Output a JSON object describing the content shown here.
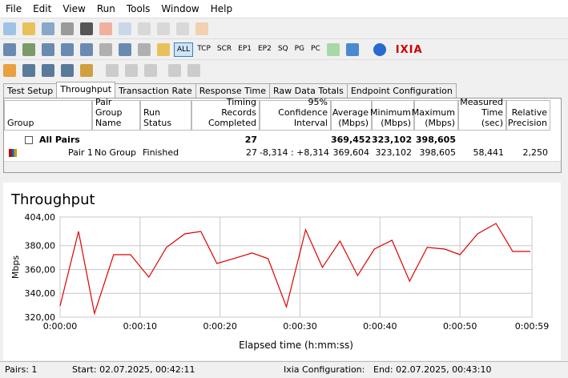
{
  "menu": [
    "File",
    "Edit",
    "View",
    "Run",
    "Tools",
    "Window",
    "Help"
  ],
  "toolbar": {
    "filters": [
      "ALL",
      "TCP",
      "SCR",
      "EP1",
      "EP2",
      "SQ",
      "PG",
      "PC"
    ],
    "logo": "IXIA"
  },
  "tabs": [
    "Test Setup",
    "Throughput",
    "Transaction Rate",
    "Response Time",
    "Raw Data Totals",
    "Endpoint Configuration"
  ],
  "table": {
    "headers": [
      "Group",
      "Pair Group Name",
      "Run Status",
      "Timing Records Completed",
      "95% Confidence Interval",
      "Average (Mbps)",
      "Minimum (Mbps)",
      "Maximum (Mbps)",
      "Measured Time (sec)",
      "Relative Precision"
    ],
    "rows": [
      [
        "All Pairs",
        null,
        null,
        "27",
        null,
        "369,452",
        "323,102",
        "398,605",
        null,
        null
      ],
      [
        "Pair 1",
        "No Group",
        "Finished",
        "27",
        "-8,314 : +8,314",
        "369,604",
        "323,102",
        "398,605",
        "58,441",
        "2,250"
      ]
    ]
  },
  "chart_data": {
    "type": "line",
    "title": "Throughput",
    "x_label": "Elapsed time (h:mm:ss)",
    "y_label": "Mbps",
    "color": "#e00000",
    "grid": true,
    "x": [
      0,
      2.3,
      4.3,
      6.7,
      8.8,
      11.1,
      13.3,
      15.6,
      17.6,
      19.6,
      21.7,
      24.0,
      26.0,
      28.3,
      30.7,
      32.8,
      35.0,
      37.2,
      39.3,
      41.5,
      43.7,
      45.9,
      48.1,
      50.0,
      52.2,
      54.5,
      56.6,
      58.8
    ],
    "values": [
      329.4,
      391.9,
      323.1,
      372.4,
      372.4,
      353.6,
      378.5,
      389.9,
      391.9,
      365.0,
      369.1,
      373.8,
      369.1,
      328.7,
      393.3,
      361.7,
      383.8,
      354.9,
      377.1,
      384.5,
      350.2,
      378.5,
      377.1,
      372.4,
      389.9,
      398.6,
      375.1,
      375.1
    ],
    "xlim": [
      0,
      59
    ],
    "ylim": [
      320,
      404
    ],
    "xticks": [
      {
        "value": 0,
        "label": "0:00:00"
      },
      {
        "value": 10,
        "label": "0:00:10"
      },
      {
        "value": 20,
        "label": "0:00:20"
      },
      {
        "value": 30,
        "label": "0:00:30"
      },
      {
        "value": 40,
        "label": "0:00:40"
      },
      {
        "value": 50,
        "label": "0:00:50"
      },
      {
        "value": 59,
        "label": "0:00:59"
      }
    ],
    "yticks": [
      {
        "value": 320,
        "label": "320,00"
      },
      {
        "value": 340,
        "label": "340,00"
      },
      {
        "value": 360,
        "label": "360,00"
      },
      {
        "value": 380,
        "label": "380,00"
      },
      {
        "value": 404,
        "label": "404,00"
      }
    ]
  },
  "status_bar": [
    "Pairs: 1",
    "Start: 02.07.2025, 00:42:11",
    "Ixia Configuration:",
    "End: 02.07.2025, 00:43:10"
  ]
}
